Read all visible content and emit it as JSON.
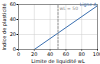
{
  "chart_data": {
    "type": "line",
    "x_label": "Limite de liquidité wL",
    "y_label": "Indice de plasticité",
    "series": [
      {
        "name": "Ligne A",
        "color": "#3a6fb0",
        "x": [
          20,
          100
        ],
        "values": [
          0,
          58.4
        ]
      },
      {
        "name": "wL = 50",
        "color": "#888888",
        "x": [
          50,
          50
        ],
        "values": [
          0,
          60
        ],
        "line_style": "dashed"
      }
    ],
    "xlim": [
      0,
      100
    ],
    "xticks": [
      0,
      20,
      40,
      60,
      80,
      100
    ],
    "ylim": [
      0,
      60
    ],
    "yticks": [
      0,
      20,
      40,
      60
    ],
    "grid": true
  }
}
